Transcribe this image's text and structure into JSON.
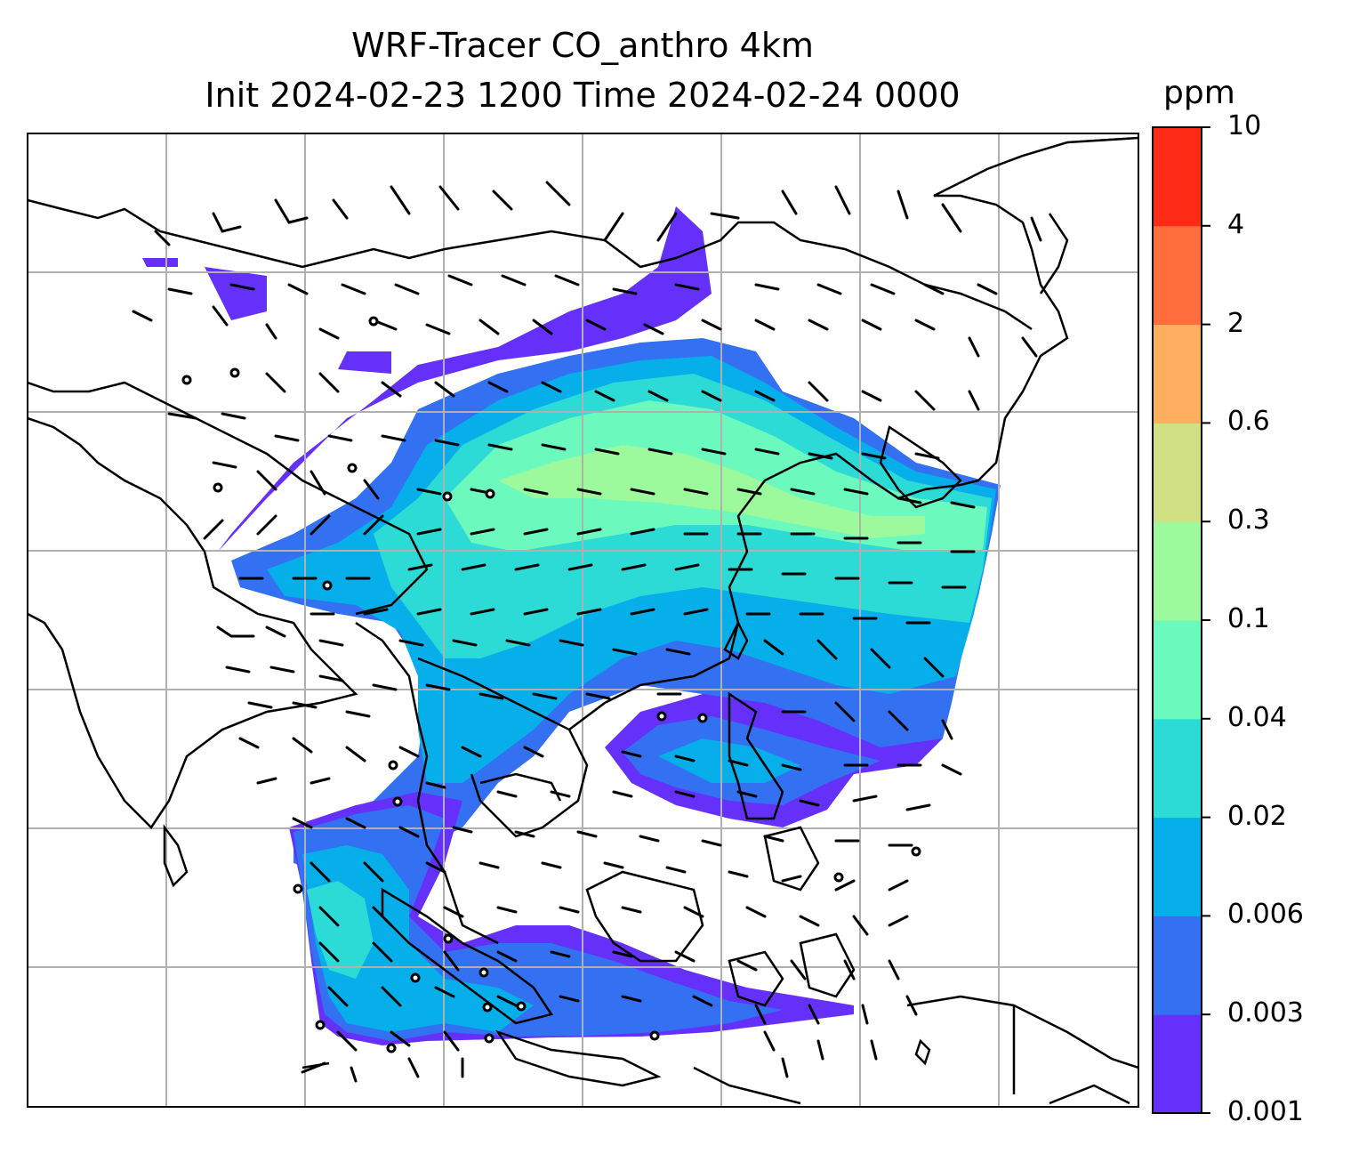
{
  "title": {
    "line1": "WRF-Tracer CO_anthro 4km",
    "line2": "Init 2024-02-23 1200 Time 2024-02-24 0000"
  },
  "colorbar": {
    "unit": "ppm",
    "levels": [
      "0.001",
      "0.003",
      "0.006",
      "0.02",
      "0.04",
      "0.1",
      "0.3",
      "0.6",
      "2",
      "4",
      "10"
    ],
    "colors": [
      "#6430fa",
      "#3470f2",
      "#06aeea",
      "#2ddbd6",
      "#6cf9be",
      "#9cfa9c",
      "#d0e083",
      "#fdae5f",
      "#fe6d3b",
      "#fe2c16"
    ]
  },
  "map": {
    "projection": "lat-lon",
    "gridlines": true,
    "coastlines": true,
    "field": "CO_anthro concentration",
    "overlay": "wind barbs"
  }
}
